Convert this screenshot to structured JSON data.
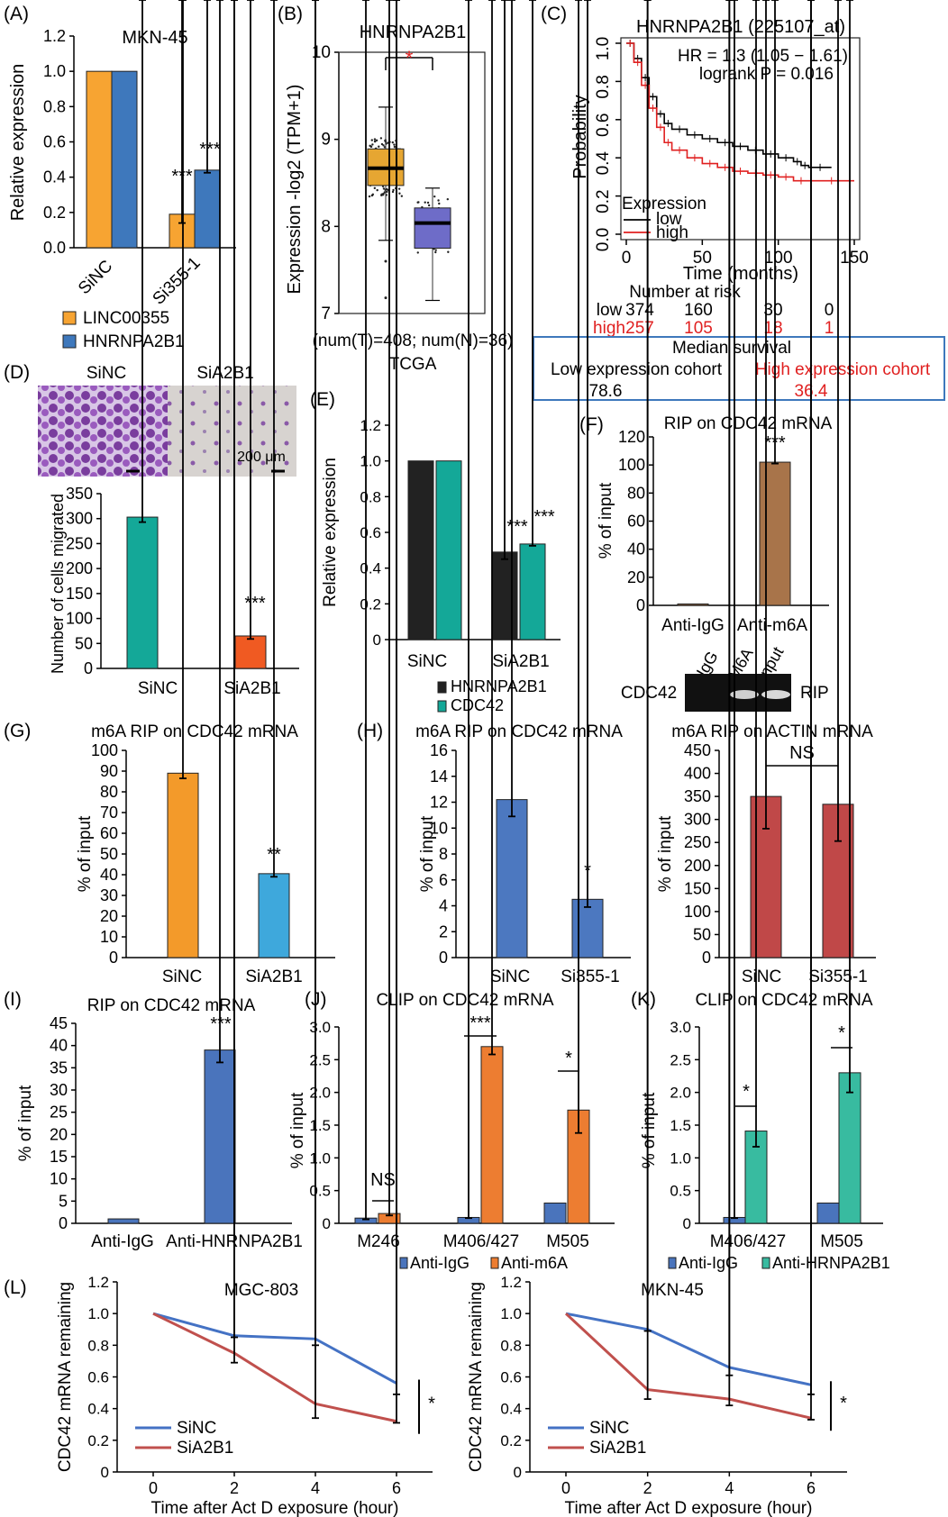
{
  "colors": {
    "orange": "#F7A432",
    "blue": "#3E78BC",
    "teal": "#14A898",
    "redorange": "#F05A22",
    "black": "#222222",
    "mint": "#38BBA0",
    "brown": "#A8744A",
    "orange2": "#F39A2A",
    "skyblue": "#3EA8DC",
    "steel": "#4C78C0",
    "brick": "#C04848",
    "bar_blue": "#4A74BC",
    "bar_orange": "#ED7D31",
    "km_low": "#000000",
    "km_high": "#E02020",
    "line_blue": "#4472C4",
    "line_red": "#C0504D",
    "box_tumor": "#E6A632",
    "box_normal": "#6E6CC8",
    "star_red": "#E02020"
  },
  "panels": {
    "A": {
      "label": "(A)"
    },
    "B": {
      "label": "(B)"
    },
    "C": {
      "label": "(C)"
    },
    "D": {
      "label": "(D)"
    },
    "E": {
      "label": "(E)"
    },
    "F": {
      "label": "(F)"
    },
    "G": {
      "label": "(G)"
    },
    "H": {
      "label": "(H)"
    },
    "I": {
      "label": "(I)"
    },
    "J": {
      "label": "(J)"
    },
    "K": {
      "label": "(K)"
    },
    "L": {
      "label": "(L)"
    }
  },
  "km": {
    "hr_text": "HR = 1.3 (1.05 − 1.61)",
    "logrank_text": "logrank P = 0.016",
    "legend_title": "Expression",
    "low": "low",
    "high": "high",
    "risk_title": "Number at risk",
    "risk_low": [
      "low",
      "374",
      "160",
      "30",
      "0"
    ],
    "risk_high": [
      "high",
      "257",
      "105",
      "18",
      "1"
    ],
    "median_title": "Median survival",
    "median_low_label": "Low expression cohort",
    "median_high_label": "High expression cohort",
    "median_low": "78.6",
    "median_high": "36.4"
  },
  "boxplot": {
    "caption1": "(num(T)=408; num(N)=36)",
    "caption2": "TCGA"
  },
  "micro": {
    "siNC": "SiNC",
    "siA2B1": "SiA2B1",
    "scale": "200 μm"
  },
  "gel": {
    "row_label": "CDC42",
    "side_label": "RIP",
    "lanes": [
      "IgG",
      "M6A",
      "Input"
    ]
  },
  "chart_data": [
    {
      "id": "A",
      "type": "bar",
      "title": "MKN-45",
      "ylabel": "Relative expression",
      "ylim": [
        0,
        1.2
      ],
      "yticks": [
        "0.0",
        "0.2",
        "0.4",
        "0.6",
        "0.8",
        "1.0",
        "1.2"
      ],
      "categories": [
        "SiNC",
        "Si355-1"
      ],
      "series": [
        {
          "name": "LINC00355",
          "values": [
            1.0,
            0.19
          ],
          "err": [
            0,
            0.05
          ]
        },
        {
          "name": "HNRNPA2B1",
          "values": [
            1.0,
            0.44
          ],
          "err": [
            0,
            0.015
          ]
        }
      ],
      "annotations": [
        "***",
        "***"
      ]
    },
    {
      "id": "B",
      "type": "box",
      "title": "HNRNPA2B1",
      "ylabel": "Expression -log2 (TPM+1)",
      "ylim": [
        6,
        11
      ],
      "yticks": [
        "7",
        "8",
        "9",
        "10"
      ],
      "groups": [
        {
          "name": "T",
          "q1": 8.45,
          "median": 8.78,
          "q3": 9.15,
          "min": 7.4,
          "max": 9.95
        },
        {
          "name": "N",
          "q1": 7.25,
          "median": 7.73,
          "q3": 8.02,
          "min": 6.25,
          "max": 8.4
        }
      ],
      "annotations": [
        "*"
      ]
    },
    {
      "id": "C",
      "type": "line",
      "title": "HNRNPA2B1 (225107_at)",
      "ylabel": "Probability",
      "xlabel": "Time (months)",
      "ylim": [
        0,
        1
      ],
      "xlim": [
        0,
        150
      ],
      "yticks": [
        "0.0",
        "0.2",
        "0.4",
        "0.6",
        "0.8",
        "1.0"
      ],
      "xticks": [
        "0",
        "50",
        "100",
        "150"
      ],
      "series": [
        {
          "name": "low",
          "x": [
            0,
            5,
            10,
            15,
            20,
            25,
            30,
            40,
            50,
            60,
            70,
            80,
            90,
            100,
            110,
            115,
            120,
            135
          ],
          "y": [
            1.0,
            0.92,
            0.82,
            0.72,
            0.63,
            0.58,
            0.55,
            0.52,
            0.5,
            0.48,
            0.46,
            0.44,
            0.42,
            0.4,
            0.38,
            0.36,
            0.35,
            0.35
          ]
        },
        {
          "name": "high",
          "x": [
            0,
            5,
            10,
            15,
            20,
            25,
            30,
            40,
            50,
            60,
            70,
            80,
            90,
            100,
            110,
            120,
            150
          ],
          "y": [
            1.0,
            0.9,
            0.78,
            0.66,
            0.56,
            0.48,
            0.44,
            0.4,
            0.37,
            0.35,
            0.33,
            0.32,
            0.31,
            0.3,
            0.28,
            0.28,
            0.28
          ]
        }
      ]
    },
    {
      "id": "D",
      "type": "bar",
      "ylabel": "Number of cells migrated",
      "ylim": [
        0,
        350
      ],
      "yticks": [
        "0",
        "50",
        "100",
        "150",
        "200",
        "250",
        "300",
        "350"
      ],
      "categories": [
        "SiNC",
        "SiA2B1"
      ],
      "series": [
        {
          "values": [
            303,
            65
          ],
          "err": [
            10,
            6
          ],
          "colors": [
            "teal",
            "redorange"
          ]
        }
      ],
      "annotations": [
        "***"
      ]
    },
    {
      "id": "E",
      "type": "bar",
      "ylabel": "Relative expression",
      "ylim": [
        0,
        1.2
      ],
      "yticks": [
        "0",
        "0.2",
        "0.4",
        "0.6",
        "0.8",
        "1.0",
        "1.2"
      ],
      "categories": [
        "SiNC",
        "SiA2B1"
      ],
      "series": [
        {
          "name": "HNRNPA2B1",
          "values": [
            1.0,
            0.49
          ],
          "err": [
            0,
            0.04
          ]
        },
        {
          "name": "CDC42",
          "values": [
            1.0,
            0.535
          ],
          "err": [
            0,
            0.01
          ]
        }
      ],
      "annotations": [
        "***",
        "***"
      ]
    },
    {
      "id": "F",
      "type": "bar",
      "title": "RIP on CDC42 mRNA",
      "ylabel": "% of input",
      "ylim": [
        0,
        120
      ],
      "yticks": [
        "0",
        "20",
        "40",
        "60",
        "80",
        "100",
        "120"
      ],
      "categories": [
        "Anti-IgG",
        "Anti-m6A"
      ],
      "series": [
        {
          "values": [
            1,
            102
          ],
          "err": [
            0,
            1
          ]
        }
      ],
      "annotations": [
        "***"
      ]
    },
    {
      "id": "G",
      "type": "bar",
      "title": "m6A RIP on CDC42 mRNA",
      "ylabel": "% of input",
      "ylim": [
        0,
        100
      ],
      "yticks": [
        "0",
        "10",
        "20",
        "30",
        "40",
        "50",
        "60",
        "70",
        "80",
        "90",
        "100"
      ],
      "categories": [
        "SiNC",
        "SiA2B1"
      ],
      "series": [
        {
          "values": [
            89,
            40.5
          ],
          "err": [
            2.5,
            1.5
          ],
          "colors": [
            "orange2",
            "skyblue"
          ]
        }
      ],
      "annotations": [
        "**"
      ]
    },
    {
      "id": "H1",
      "type": "bar",
      "title": "m6A RIP on CDC42 mRNA",
      "ylabel": "% of input",
      "ylim": [
        0,
        16
      ],
      "yticks": [
        "0",
        "2",
        "4",
        "6",
        "8",
        "10",
        "12",
        "14",
        "16"
      ],
      "categories": [
        "SiNC",
        "Si355-1"
      ],
      "series": [
        {
          "values": [
            12.2,
            4.5
          ],
          "err": [
            1.3,
            0.6
          ]
        }
      ],
      "annotations": [
        "*"
      ]
    },
    {
      "id": "H2",
      "type": "bar",
      "title": "m6A RIP on ACTIN mRNA",
      "ylabel": "% of input",
      "ylim": [
        0,
        450
      ],
      "yticks": [
        "0",
        "50",
        "100",
        "150",
        "200",
        "250",
        "300",
        "350",
        "400",
        "450"
      ],
      "categories": [
        "SiNC",
        "Si355-1"
      ],
      "series": [
        {
          "values": [
            350,
            333
          ],
          "err": [
            70,
            80
          ]
        }
      ],
      "annotations": [
        "NS"
      ]
    },
    {
      "id": "I",
      "type": "bar",
      "title": "RIP on CDC42 mRNA",
      "ylabel": "% of input",
      "ylim": [
        0,
        45
      ],
      "yticks": [
        "0",
        "5",
        "10",
        "15",
        "20",
        "25",
        "30",
        "35",
        "40",
        "45"
      ],
      "categories": [
        "Anti-IgG",
        "Anti-HNRNPA2B1"
      ],
      "series": [
        {
          "values": [
            1,
            39
          ],
          "err": [
            0.1,
            2.8
          ]
        }
      ],
      "annotations": [
        "***"
      ]
    },
    {
      "id": "J",
      "type": "bar",
      "title": "CLIP on CDC42 mRNA",
      "ylabel": "% of input",
      "ylim": [
        0,
        3.0
      ],
      "yticks": [
        "0",
        "0.5",
        "1.0",
        "1.5",
        "2.0",
        "2.5",
        "3.0"
      ],
      "categories": [
        "M246",
        "M406/427",
        "M505"
      ],
      "series": [
        {
          "name": "Anti-IgG",
          "values": [
            0.08,
            0.09,
            0.31
          ],
          "err": [
            0.02,
            0.01,
            0
          ]
        },
        {
          "name": "Anti-m6A",
          "values": [
            0.15,
            2.7,
            1.73
          ],
          "err": [
            0.03,
            0.12,
            0.35
          ]
        }
      ],
      "annotations": [
        "NS",
        "***",
        "*"
      ]
    },
    {
      "id": "K",
      "type": "bar",
      "title": "CLIP on CDC42 mRNA",
      "ylabel": "% of input",
      "ylim": [
        0,
        3.0
      ],
      "yticks": [
        "0",
        "0.5",
        "1.0",
        "1.5",
        "2.0",
        "2.5",
        "3.0"
      ],
      "categories": [
        "M406/427",
        "M505"
      ],
      "series": [
        {
          "name": "Anti-IgG",
          "values": [
            0.09,
            0.31
          ],
          "err": [
            0.01,
            0
          ]
        },
        {
          "name": "Anti-HRNPA2B1",
          "values": [
            1.41,
            2.3
          ],
          "err": [
            0.24,
            0.3
          ]
        }
      ],
      "annotations": [
        "*",
        "*"
      ]
    },
    {
      "id": "L1",
      "type": "line",
      "title": "MGC-803",
      "ylabel": "CDC42 mRNA remaining",
      "xlabel": "Time after Act D exposure (hour)",
      "ylim": [
        0,
        1.2
      ],
      "xlim": [
        0,
        6
      ],
      "yticks": [
        "0",
        "0.2",
        "0.4",
        "0.6",
        "0.8",
        "1.0",
        "1.2"
      ],
      "xticks": [
        "0",
        "2",
        "4",
        "6"
      ],
      "x": [
        0,
        2,
        4,
        6
      ],
      "series": [
        {
          "name": "SiNC",
          "values": [
            1.0,
            0.86,
            0.84,
            0.56
          ],
          "err": [
            0,
            0.01,
            0.04,
            0.07
          ]
        },
        {
          "name": "SiA2B1",
          "values": [
            1.0,
            0.75,
            0.43,
            0.32
          ],
          "err": [
            0,
            0.06,
            0.09,
            0.01
          ]
        }
      ],
      "annotations": [
        "*"
      ]
    },
    {
      "id": "L2",
      "type": "line",
      "title": "MKN-45",
      "ylabel": "CDC42 mRNA remaining",
      "xlabel": "Time after Act D exposure (hour)",
      "ylim": [
        0,
        1.2
      ],
      "xlim": [
        0,
        6
      ],
      "yticks": [
        "0",
        "0.2",
        "0.4",
        "0.6",
        "0.8",
        "1.0",
        "1.2"
      ],
      "xticks": [
        "0",
        "2",
        "4",
        "6"
      ],
      "x": [
        0,
        2,
        4,
        6
      ],
      "series": [
        {
          "name": "SiNC",
          "values": [
            1.0,
            0.9,
            0.66,
            0.55
          ],
          "err": [
            0,
            0.01,
            0.05,
            0.06
          ]
        },
        {
          "name": "SiA2B1",
          "values": [
            1.0,
            0.52,
            0.46,
            0.34
          ],
          "err": [
            0,
            0.06,
            0.04,
            0.01
          ]
        }
      ],
      "annotations": [
        "*"
      ]
    }
  ]
}
